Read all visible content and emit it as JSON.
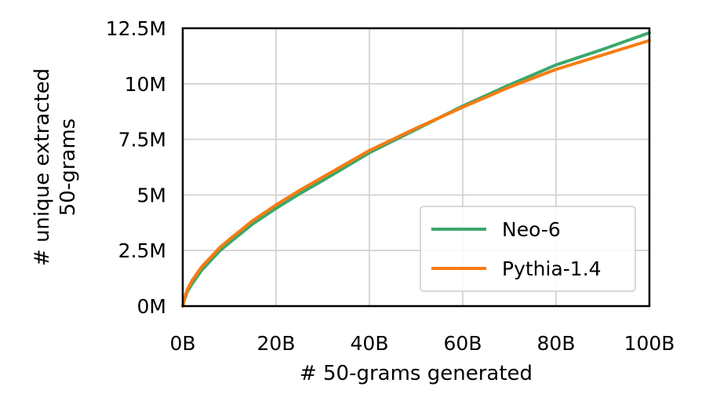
{
  "chart_data": {
    "type": "line",
    "xlabel": "# 50-grams generated",
    "ylabel_lines": [
      "# unique extracted",
      "50-grams"
    ],
    "xlim": [
      0,
      100
    ],
    "ylim": [
      0,
      12.5
    ],
    "x_unit": "billions",
    "y_unit": "millions",
    "x_ticks": [
      {
        "value": 0,
        "label": "0B"
      },
      {
        "value": 20,
        "label": "20B"
      },
      {
        "value": 40,
        "label": "40B"
      },
      {
        "value": 60,
        "label": "60B"
      },
      {
        "value": 80,
        "label": "80B"
      },
      {
        "value": 100,
        "label": "100B"
      }
    ],
    "y_ticks": [
      {
        "value": 0,
        "label": "0M"
      },
      {
        "value": 2.5,
        "label": "2.5M"
      },
      {
        "value": 5,
        "label": "5M"
      },
      {
        "value": 7.5,
        "label": "7.5M"
      },
      {
        "value": 10,
        "label": "10M"
      },
      {
        "value": 12.5,
        "label": "12.5M"
      }
    ],
    "grid": true,
    "legend_position": "lower-right",
    "series": [
      {
        "name": "Neo-6",
        "color": "#3aa86b",
        "x": [
          0,
          0.3,
          1,
          2,
          4,
          6,
          8,
          10,
          15,
          20,
          25,
          30,
          40,
          50,
          60,
          70,
          80,
          90,
          100
        ],
        "y": [
          0,
          0.25,
          0.65,
          1.0,
          1.6,
          2.05,
          2.5,
          2.85,
          3.7,
          4.4,
          5.05,
          5.65,
          6.9,
          7.95,
          9.0,
          9.95,
          10.85,
          11.55,
          12.3
        ]
      },
      {
        "name": "Pythia-1.4",
        "color": "#f57c12",
        "x": [
          0,
          0.3,
          1,
          2,
          4,
          6,
          8,
          10,
          15,
          20,
          25,
          30,
          40,
          50,
          60,
          70,
          80,
          90,
          100
        ],
        "y": [
          0,
          0.3,
          0.75,
          1.15,
          1.75,
          2.2,
          2.65,
          3.0,
          3.85,
          4.55,
          5.2,
          5.8,
          7.0,
          8.0,
          8.95,
          9.85,
          10.65,
          11.3,
          11.95
        ]
      }
    ]
  }
}
